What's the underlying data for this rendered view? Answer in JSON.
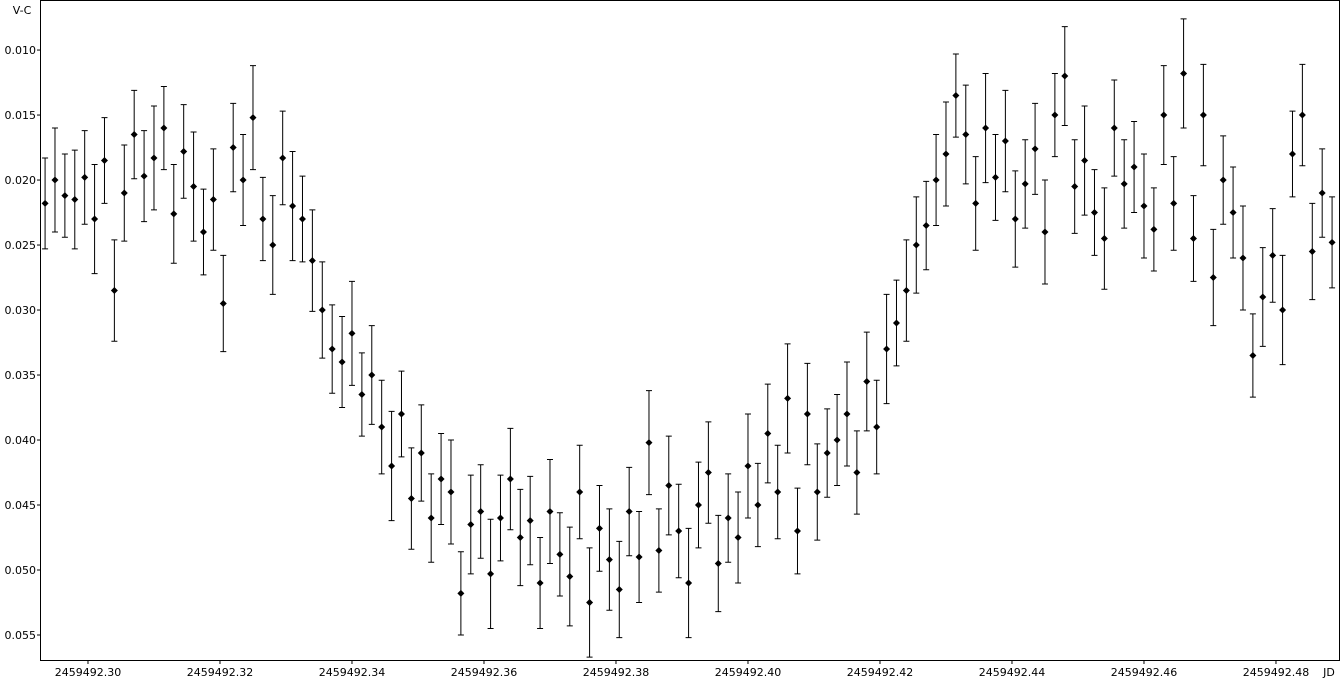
{
  "chart_data": {
    "type": "errorbar-scatter",
    "y_label": "V-C",
    "x_label": "JD",
    "y_reversed": true,
    "color": "#000000",
    "xlim": [
      2459492.29273,
      2459492.4897
    ],
    "ylim": [
      0.00615,
      0.057
    ],
    "xticks": [
      {
        "value": 2459492.3,
        "label": "2459492.30"
      },
      {
        "value": 2459492.32,
        "label": "2459492.32"
      },
      {
        "value": 2459492.34,
        "label": "2459492.34"
      },
      {
        "value": 2459492.36,
        "label": "2459492.36"
      },
      {
        "value": 2459492.38,
        "label": "2459492.38"
      },
      {
        "value": 2459492.4,
        "label": "2459492.40"
      },
      {
        "value": 2459492.42,
        "label": "2459492.42"
      },
      {
        "value": 2459492.44,
        "label": "2459492.44"
      },
      {
        "value": 2459492.46,
        "label": "2459492.46"
      },
      {
        "value": 2459492.48,
        "label": "2459492.48"
      }
    ],
    "yticks": [
      {
        "value": 0.01,
        "label": "0.010"
      },
      {
        "value": 0.015,
        "label": "0.015"
      },
      {
        "value": 0.02,
        "label": "0.020"
      },
      {
        "value": 0.025,
        "label": "0.025"
      },
      {
        "value": 0.03,
        "label": "0.030"
      },
      {
        "value": 0.035,
        "label": "0.035"
      },
      {
        "value": 0.04,
        "label": "0.040"
      },
      {
        "value": 0.045,
        "label": "0.045"
      },
      {
        "value": 0.05,
        "label": "0.050"
      },
      {
        "value": 0.055,
        "label": "0.055"
      }
    ],
    "x": [
      2459492.2935,
      2459492.295,
      2459492.2965,
      2459492.298,
      2459492.2995,
      2459492.301,
      2459492.3025,
      2459492.304,
      2459492.3055,
      2459492.307,
      2459492.3085,
      2459492.31,
      2459492.3115,
      2459492.313,
      2459492.3145,
      2459492.316,
      2459492.3175,
      2459492.319,
      2459492.3205,
      2459492.322,
      2459492.3235,
      2459492.325,
      2459492.3265,
      2459492.328,
      2459492.3295,
      2459492.331,
      2459492.3325,
      2459492.334,
      2459492.3355,
      2459492.337,
      2459492.3385,
      2459492.34,
      2459492.3415,
      2459492.343,
      2459492.3445,
      2459492.346,
      2459492.3475,
      2459492.349,
      2459492.3505,
      2459492.352,
      2459492.3535,
      2459492.355,
      2459492.3565,
      2459492.358,
      2459492.3595,
      2459492.361,
      2459492.3625,
      2459492.364,
      2459492.3655,
      2459492.367,
      2459492.3685,
      2459492.37,
      2459492.3715,
      2459492.373,
      2459492.3745,
      2459492.376,
      2459492.3775,
      2459492.379,
      2459492.3805,
      2459492.382,
      2459492.3835,
      2459492.385,
      2459492.3865,
      2459492.388,
      2459492.3895,
      2459492.391,
      2459492.3925,
      2459492.394,
      2459492.3955,
      2459492.397,
      2459492.3985,
      2459492.4,
      2459492.4015,
      2459492.403,
      2459492.4045,
      2459492.406,
      2459492.4075,
      2459492.409,
      2459492.4105,
      2459492.412,
      2459492.4135,
      2459492.415,
      2459492.4165,
      2459492.418,
      2459492.4195,
      2459492.421,
      2459492.4225,
      2459492.424,
      2459492.4255,
      2459492.427,
      2459492.4285,
      2459492.43,
      2459492.4315,
      2459492.433,
      2459492.4345,
      2459492.436,
      2459492.4375,
      2459492.439,
      2459492.4405,
      2459492.442,
      2459492.4435,
      2459492.445,
      2459492.4465,
      2459492.448,
      2459492.4495,
      2459492.451,
      2459492.4525,
      2459492.454,
      2459492.4555,
      2459492.457,
      2459492.4585,
      2459492.46,
      2459492.4615,
      2459492.463,
      2459492.4645,
      2459492.466,
      2459492.4675,
      2459492.469,
      2459492.4705,
      2459492.472,
      2459492.4735,
      2459492.475,
      2459492.4765,
      2459492.478,
      2459492.4795,
      2459492.481,
      2459492.4825,
      2459492.484,
      2459492.4855,
      2459492.487,
      2459492.4885
    ],
    "values": [
      0.0218,
      0.02,
      0.0212,
      0.0215,
      0.0198,
      0.023,
      0.0185,
      0.0285,
      0.021,
      0.0165,
      0.0197,
      0.0183,
      0.016,
      0.0226,
      0.0178,
      0.0205,
      0.024,
      0.0215,
      0.0295,
      0.0175,
      0.02,
      0.0152,
      0.023,
      0.025,
      0.0183,
      0.022,
      0.023,
      0.0262,
      0.03,
      0.033,
      0.034,
      0.0318,
      0.0365,
      0.035,
      0.039,
      0.042,
      0.038,
      0.0445,
      0.041,
      0.046,
      0.043,
      0.044,
      0.0518,
      0.0465,
      0.0455,
      0.0503,
      0.046,
      0.043,
      0.0475,
      0.0462,
      0.051,
      0.0455,
      0.0488,
      0.0505,
      0.044,
      0.0525,
      0.0468,
      0.0492,
      0.0515,
      0.0455,
      0.049,
      0.0402,
      0.0485,
      0.0435,
      0.047,
      0.051,
      0.045,
      0.0425,
      0.0495,
      0.046,
      0.0475,
      0.042,
      0.045,
      0.0395,
      0.044,
      0.0368,
      0.047,
      0.038,
      0.044,
      0.041,
      0.04,
      0.038,
      0.0425,
      0.0355,
      0.039,
      0.033,
      0.031,
      0.0285,
      0.025,
      0.0235,
      0.02,
      0.018,
      0.0135,
      0.0165,
      0.0218,
      0.016,
      0.0198,
      0.017,
      0.023,
      0.0203,
      0.0176,
      0.024,
      0.015,
      0.012,
      0.0205,
      0.0185,
      0.0225,
      0.0245,
      0.016,
      0.0203,
      0.019,
      0.022,
      0.0238,
      0.015,
      0.0218,
      0.0118,
      0.0245,
      0.015,
      0.0275,
      0.02,
      0.0225,
      0.026,
      0.0335,
      0.029,
      0.0258,
      0.03,
      0.018,
      0.015,
      0.0255,
      0.021,
      0.0248
    ],
    "errors": [
      0.0035,
      0.004,
      0.0032,
      0.0038,
      0.0036,
      0.0042,
      0.0033,
      0.0039,
      0.0037,
      0.0034,
      0.0035,
      0.004,
      0.0032,
      0.0038,
      0.0036,
      0.0042,
      0.0033,
      0.0039,
      0.0037,
      0.0034,
      0.0035,
      0.004,
      0.0032,
      0.0038,
      0.0036,
      0.0042,
      0.0033,
      0.0039,
      0.0037,
      0.0034,
      0.0035,
      0.004,
      0.0032,
      0.0038,
      0.0036,
      0.0042,
      0.0033,
      0.0039,
      0.0037,
      0.0034,
      0.0035,
      0.004,
      0.0032,
      0.0038,
      0.0036,
      0.0042,
      0.0033,
      0.0039,
      0.0037,
      0.0034,
      0.0035,
      0.004,
      0.0032,
      0.0038,
      0.0036,
      0.0042,
      0.0033,
      0.0039,
      0.0037,
      0.0034,
      0.0035,
      0.004,
      0.0032,
      0.0038,
      0.0036,
      0.0042,
      0.0033,
      0.0039,
      0.0037,
      0.0034,
      0.0035,
      0.004,
      0.0032,
      0.0038,
      0.0036,
      0.0042,
      0.0033,
      0.0039,
      0.0037,
      0.0034,
      0.0035,
      0.004,
      0.0032,
      0.0038,
      0.0036,
      0.0042,
      0.0033,
      0.0039,
      0.0037,
      0.0034,
      0.0035,
      0.004,
      0.0032,
      0.0038,
      0.0036,
      0.0042,
      0.0033,
      0.0039,
      0.0037,
      0.0034,
      0.0035,
      0.004,
      0.0032,
      0.0038,
      0.0036,
      0.0042,
      0.0033,
      0.0039,
      0.0037,
      0.0034,
      0.0035,
      0.004,
      0.0032,
      0.0038,
      0.0036,
      0.0042,
      0.0033,
      0.0039,
      0.0037,
      0.0034,
      0.0035,
      0.004,
      0.0032,
      0.0038,
      0.0036,
      0.0042,
      0.0033,
      0.0039,
      0.0037,
      0.0034,
      0.0035
    ]
  }
}
